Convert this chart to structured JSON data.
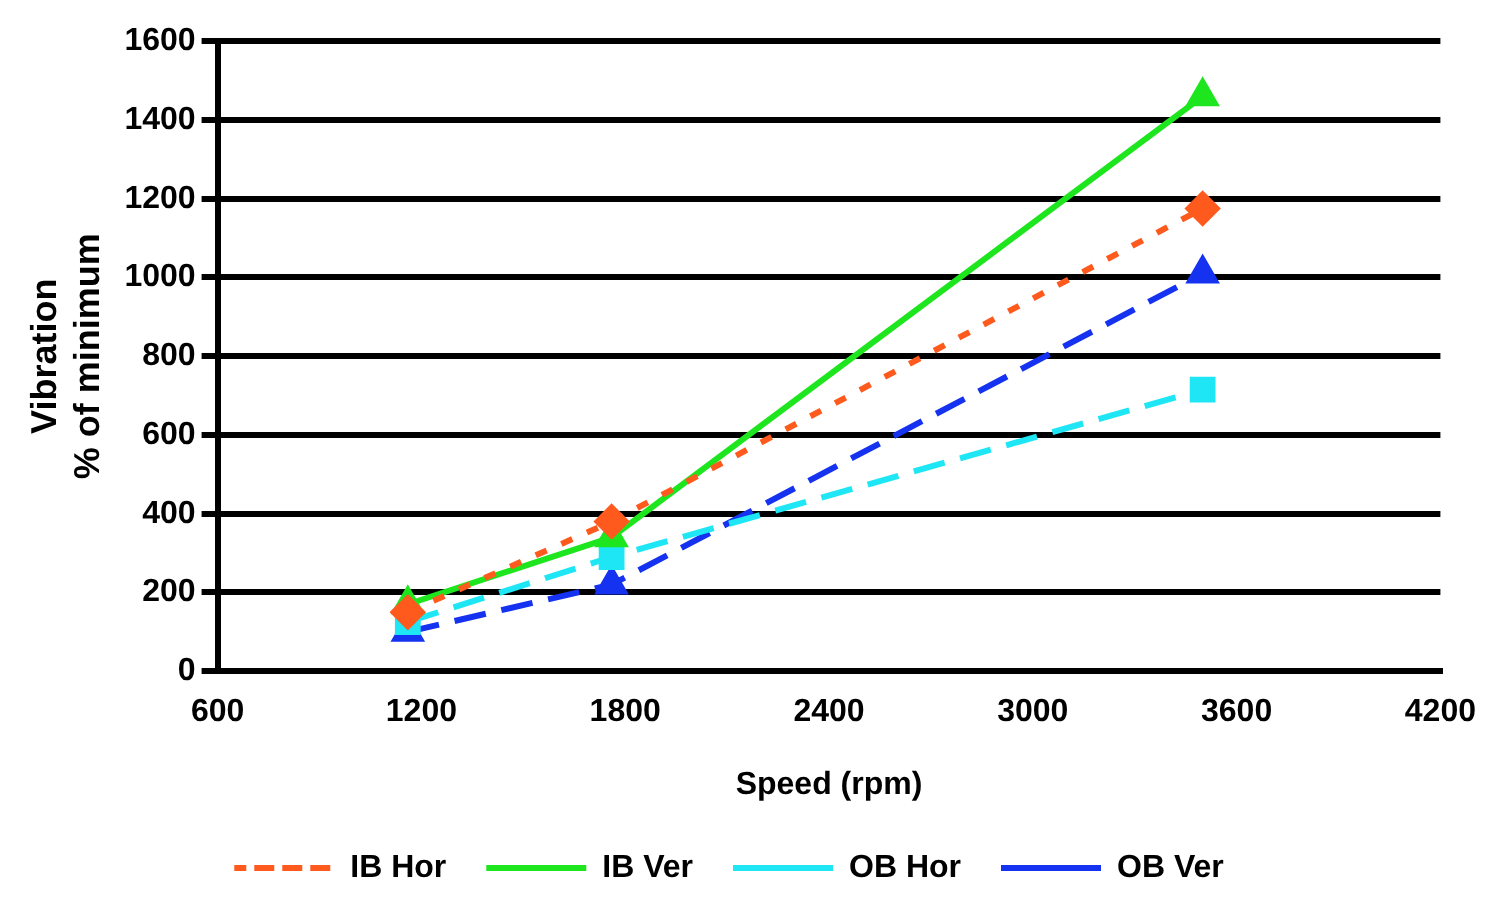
{
  "chart_data": {
    "type": "line",
    "xlabel": "Speed (rpm)",
    "ylabel": "Vibration\n% of minimum",
    "xlim": [
      600,
      4200
    ],
    "xticks": [
      600,
      1200,
      1800,
      2400,
      3000,
      3600,
      4200
    ],
    "ylim": [
      0,
      1600
    ],
    "yticks": [
      0,
      200,
      400,
      600,
      800,
      1000,
      1200,
      1400,
      1600
    ],
    "grid": "y",
    "legend": "bottom",
    "series": [
      {
        "name": "IB Hor",
        "color": "#ff5a1e",
        "x": [
          1160,
          1760,
          3500
        ],
        "values": [
          150,
          380,
          1175
        ],
        "marker": "diamond",
        "line_style": "dotted"
      },
      {
        "name": "IB Ver",
        "color": "#1ee61e",
        "x": [
          1160,
          1760,
          3500
        ],
        "values": [
          170,
          340,
          1460
        ],
        "marker": "triangle",
        "line_style": "solid"
      },
      {
        "name": "OB Hor",
        "color": "#1ee6f5",
        "x": [
          1160,
          1760,
          3500
        ],
        "values": [
          125,
          290,
          715
        ],
        "marker": "square",
        "line_style": "dashed"
      },
      {
        "name": "OB Ver",
        "color": "#1432f0",
        "x": [
          1160,
          1760,
          3500
        ],
        "values": [
          100,
          220,
          1010
        ],
        "marker": "triangle",
        "line_style": "dashed"
      }
    ]
  }
}
